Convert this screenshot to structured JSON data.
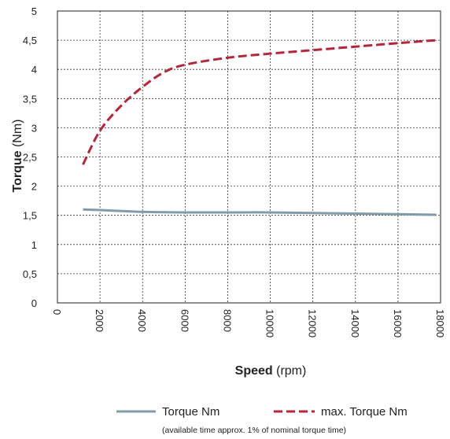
{
  "chart_data": {
    "type": "line",
    "xlabel": {
      "bold": "Speed",
      "unit": "(rpm)"
    },
    "ylabel": {
      "bold": "Torque",
      "unit": "(Nm)"
    },
    "xlim": [
      0,
      18000
    ],
    "ylim": [
      0,
      5
    ],
    "x_ticks": [
      "0",
      "2000",
      "4000",
      "6000",
      "8000",
      "10000",
      "12000",
      "14000",
      "16000",
      "18000"
    ],
    "y_ticks": [
      "0",
      "0,5",
      "1",
      "1,5",
      "2",
      "2,5",
      "3",
      "3,5",
      "4",
      "4,5",
      "5"
    ],
    "grid": true,
    "legend_position": "bottom",
    "series": [
      {
        "name": "Torque Nm",
        "color": "#7f9ca8",
        "style": "solid",
        "x": [
          1200,
          2000,
          4000,
          6000,
          8000,
          10000,
          12000,
          14000,
          16000,
          17800
        ],
        "y": [
          1.6,
          1.59,
          1.56,
          1.55,
          1.55,
          1.55,
          1.54,
          1.53,
          1.52,
          1.51
        ]
      },
      {
        "name": "max. Torque Nm",
        "color": "#b5263a",
        "style": "dashed",
        "x": [
          1200,
          2000,
          3000,
          4000,
          5000,
          6000,
          8000,
          10000,
          12000,
          14000,
          16000,
          17800
        ],
        "y": [
          2.37,
          2.95,
          3.38,
          3.7,
          3.95,
          4.08,
          4.2,
          4.27,
          4.33,
          4.39,
          4.45,
          4.5
        ]
      }
    ],
    "note": "(available time approx. 1% of nominal torque time)"
  }
}
